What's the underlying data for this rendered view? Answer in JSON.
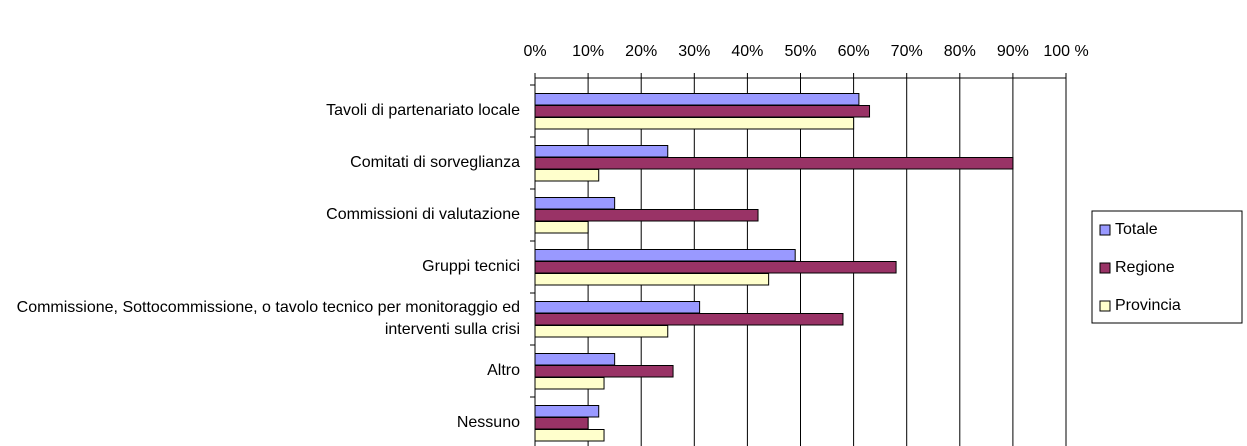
{
  "chart_data": {
    "type": "hbar",
    "categories": [
      "Tavoli di partenariato locale",
      "Comitati di sorveglianza",
      "Commissioni di valutazione",
      "Gruppi tecnici",
      "Commissione, Sottocommissione, o tavolo tecnico per monitoraggio ed interventi sulla crisi",
      "Altro",
      "Nessuno"
    ],
    "series": [
      {
        "name": "Totale",
        "color": "#9999ff",
        "values": [
          61,
          25,
          15,
          49,
          31,
          15,
          12
        ]
      },
      {
        "name": "Regione",
        "color": "#993366",
        "values": [
          63,
          90,
          42,
          68,
          58,
          26,
          10
        ]
      },
      {
        "name": "Provincia",
        "color": "#ffffcc",
        "values": [
          60,
          12,
          10,
          44,
          25,
          13,
          13
        ]
      }
    ],
    "xlim": [
      0,
      100
    ],
    "xticks": [
      {
        "value": 0,
        "label": "0%"
      },
      {
        "value": 10,
        "label": "10%"
      },
      {
        "value": 20,
        "label": "20%"
      },
      {
        "value": 30,
        "label": "30%"
      },
      {
        "value": 40,
        "label": "40%"
      },
      {
        "value": 50,
        "label": "50%"
      },
      {
        "value": 60,
        "label": "60%"
      },
      {
        "value": 70,
        "label": "70%"
      },
      {
        "value": 80,
        "label": "80%"
      },
      {
        "value": 90,
        "label": "90%"
      },
      {
        "value": 100,
        "label": "100 %"
      }
    ],
    "grid": true,
    "legend": "right"
  }
}
